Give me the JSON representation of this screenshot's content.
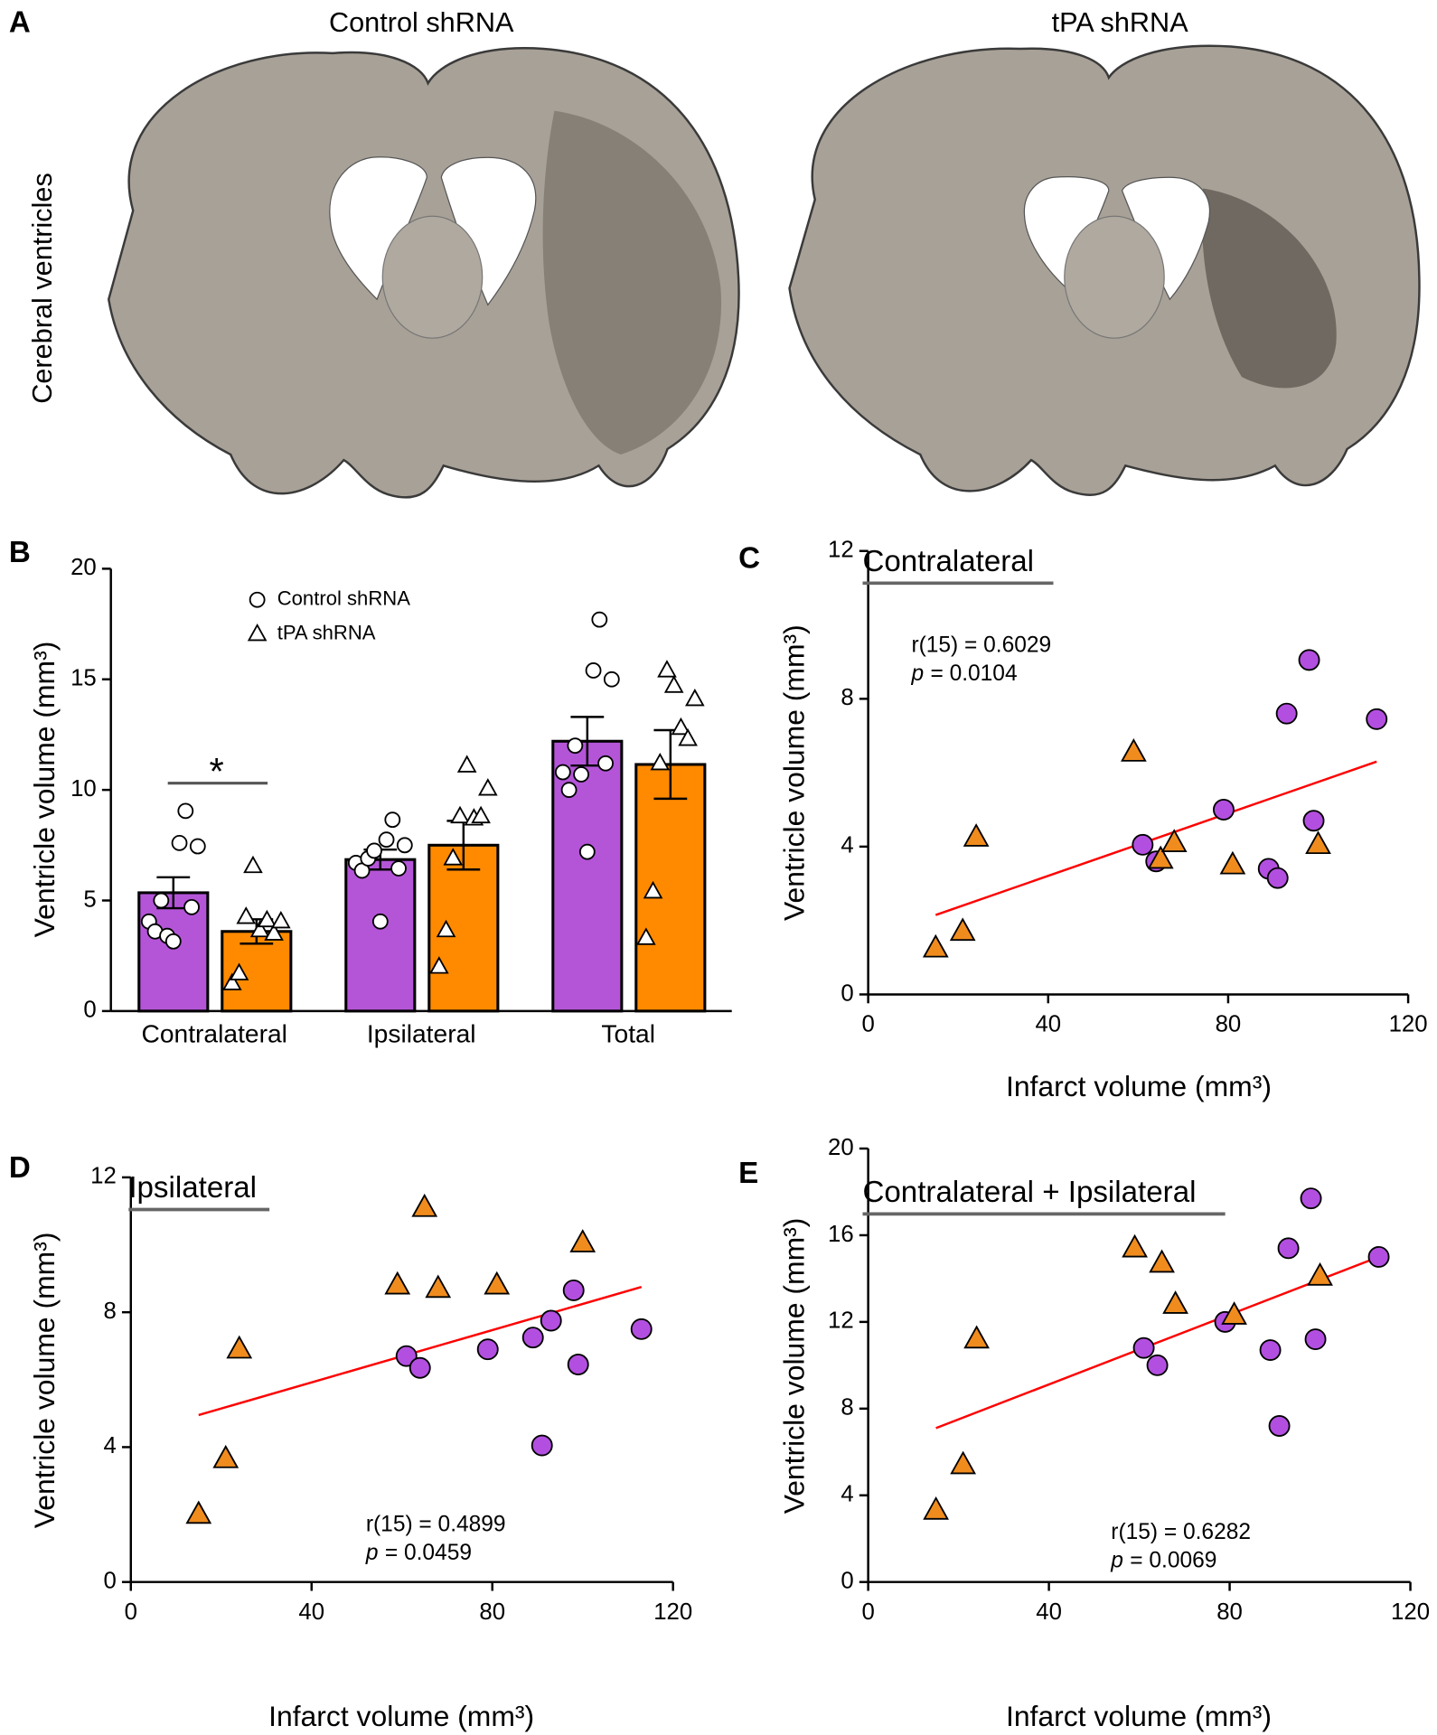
{
  "panel_a": {
    "letter": "A",
    "left_title": "Control shRNA",
    "right_title": "tPA shRNA",
    "row_label": "Cerebral ventricles"
  },
  "chart_data": [
    {
      "type": "bar",
      "panel": "B",
      "ylabel": "Ventricle volume (mm³)",
      "categories": [
        "Contralateral",
        "Ipsilateral",
        "Total"
      ],
      "ylim": [
        0,
        20
      ],
      "yticks": [
        0,
        5,
        10,
        15,
        20
      ],
      "series": [
        {
          "name": "Control shRNA",
          "color": "#b455d8",
          "marker": "circle",
          "values": [
            5.35,
            6.85,
            12.2
          ],
          "errors": [
            0.7,
            0.45,
            1.1
          ],
          "points": [
            [
              4.05,
              3.6,
              5.0,
              3.4,
              3.15,
              7.6,
              9.05,
              4.7,
              7.45
            ],
            [
              6.7,
              6.35,
              6.9,
              7.25,
              4.05,
              7.75,
              8.65,
              6.45,
              7.5
            ],
            [
              10.8,
              10.0,
              12.0,
              10.7,
              7.2,
              15.4,
              17.7,
              11.2,
              15.0
            ]
          ]
        },
        {
          "name": "tPA shRNA",
          "color": "#ff8a00",
          "marker": "triangle",
          "values": [
            3.6,
            7.5,
            11.15
          ],
          "errors": [
            0.55,
            1.1,
            1.55
          ],
          "points": [
            [
              1.25,
              1.7,
              4.25,
              6.55,
              3.65,
              4.1,
              3.5,
              4.05
            ],
            [
              2.0,
              3.65,
              6.9,
              8.8,
              11.1,
              8.7,
              8.8,
              10.05
            ],
            [
              3.3,
              5.4,
              11.2,
              15.4,
              14.7,
              12.8,
              12.3,
              14.1
            ]
          ]
        }
      ],
      "significance": {
        "label": "*",
        "category": 0
      }
    },
    {
      "type": "scatter",
      "panel": "C",
      "title": "Contralateral",
      "xlabel": "Infarct volume (mm³)",
      "ylabel": "Ventricle volume (mm³)",
      "xlim": [
        0,
        120
      ],
      "xticks": [
        0,
        40,
        80,
        120
      ],
      "ylim": [
        0,
        12
      ],
      "yticks": [
        0,
        4,
        8,
        12
      ],
      "series": [
        {
          "color": "#b34fe0",
          "marker": "circle",
          "x": [
            61,
            64,
            79,
            89,
            91,
            93,
            98,
            99,
            113
          ],
          "values": [
            4.05,
            3.6,
            5.0,
            3.4,
            3.15,
            7.6,
            9.05,
            4.7,
            7.45
          ]
        },
        {
          "color": "#f08c1e",
          "marker": "triangle",
          "x": [
            15,
            21,
            24,
            59,
            65,
            68,
            81,
            100
          ],
          "values": [
            1.25,
            1.7,
            4.25,
            6.55,
            3.65,
            4.1,
            3.5,
            4.05
          ]
        }
      ],
      "fit": {
        "color": "#ff0000",
        "x": [
          15,
          113
        ],
        "values": [
          2.15,
          6.3
        ]
      },
      "stats": {
        "r": "r(15) = 0.6029",
        "p_symbol": "p",
        "p_text": "= 0.0104"
      }
    },
    {
      "type": "scatter",
      "panel": "D",
      "title": "Ipsilateral",
      "xlabel": "Infarct volume (mm³)",
      "ylabel": "Ventricle volume (mm³)",
      "xlim": [
        0,
        120
      ],
      "xticks": [
        0,
        40,
        80,
        120
      ],
      "ylim": [
        0,
        12
      ],
      "yticks": [
        0,
        4,
        8,
        12
      ],
      "series": [
        {
          "color": "#b34fe0",
          "marker": "circle",
          "x": [
            61,
            64,
            79,
            89,
            91,
            93,
            98,
            99,
            113
          ],
          "values": [
            6.7,
            6.35,
            6.9,
            7.25,
            4.05,
            7.75,
            8.65,
            6.45,
            7.5
          ]
        },
        {
          "color": "#f08c1e",
          "marker": "triangle",
          "x": [
            15,
            21,
            24,
            59,
            65,
            68,
            81,
            100
          ],
          "values": [
            2.0,
            3.65,
            6.9,
            8.8,
            11.1,
            8.7,
            8.8,
            10.05
          ]
        }
      ],
      "fit": {
        "color": "#ff0000",
        "x": [
          15,
          113
        ],
        "values": [
          4.95,
          8.75
        ]
      },
      "stats": {
        "r": "r(15) = 0.4899",
        "p_symbol": "p",
        "p_text": "= 0.0459"
      }
    },
    {
      "type": "scatter",
      "panel": "E",
      "title": "Contralateral + Ipsilateral",
      "xlabel": "Infarct volume (mm³)",
      "ylabel": "Ventricle volume (mm³)",
      "xlim": [
        0,
        120
      ],
      "xticks": [
        0,
        40,
        80,
        120
      ],
      "ylim": [
        0,
        20
      ],
      "yticks": [
        0,
        4,
        8,
        12,
        16,
        20
      ],
      "series": [
        {
          "color": "#b34fe0",
          "marker": "circle",
          "x": [
            61,
            64,
            79,
            89,
            91,
            93,
            98,
            99,
            113
          ],
          "values": [
            10.8,
            10.0,
            12.0,
            10.7,
            7.2,
            15.4,
            17.7,
            11.2,
            15.0
          ]
        },
        {
          "color": "#f08c1e",
          "marker": "triangle",
          "x": [
            15,
            21,
            24,
            59,
            65,
            68,
            81,
            100
          ],
          "values": [
            3.3,
            5.4,
            11.2,
            15.4,
            14.7,
            12.8,
            12.3,
            14.1
          ]
        }
      ],
      "fit": {
        "color": "#ff0000",
        "x": [
          15,
          113
        ],
        "values": [
          7.1,
          15.0
        ]
      },
      "stats": {
        "r": "r(15) = 0.6282",
        "p_symbol": "p",
        "p_text": "= 0.0069"
      }
    }
  ]
}
